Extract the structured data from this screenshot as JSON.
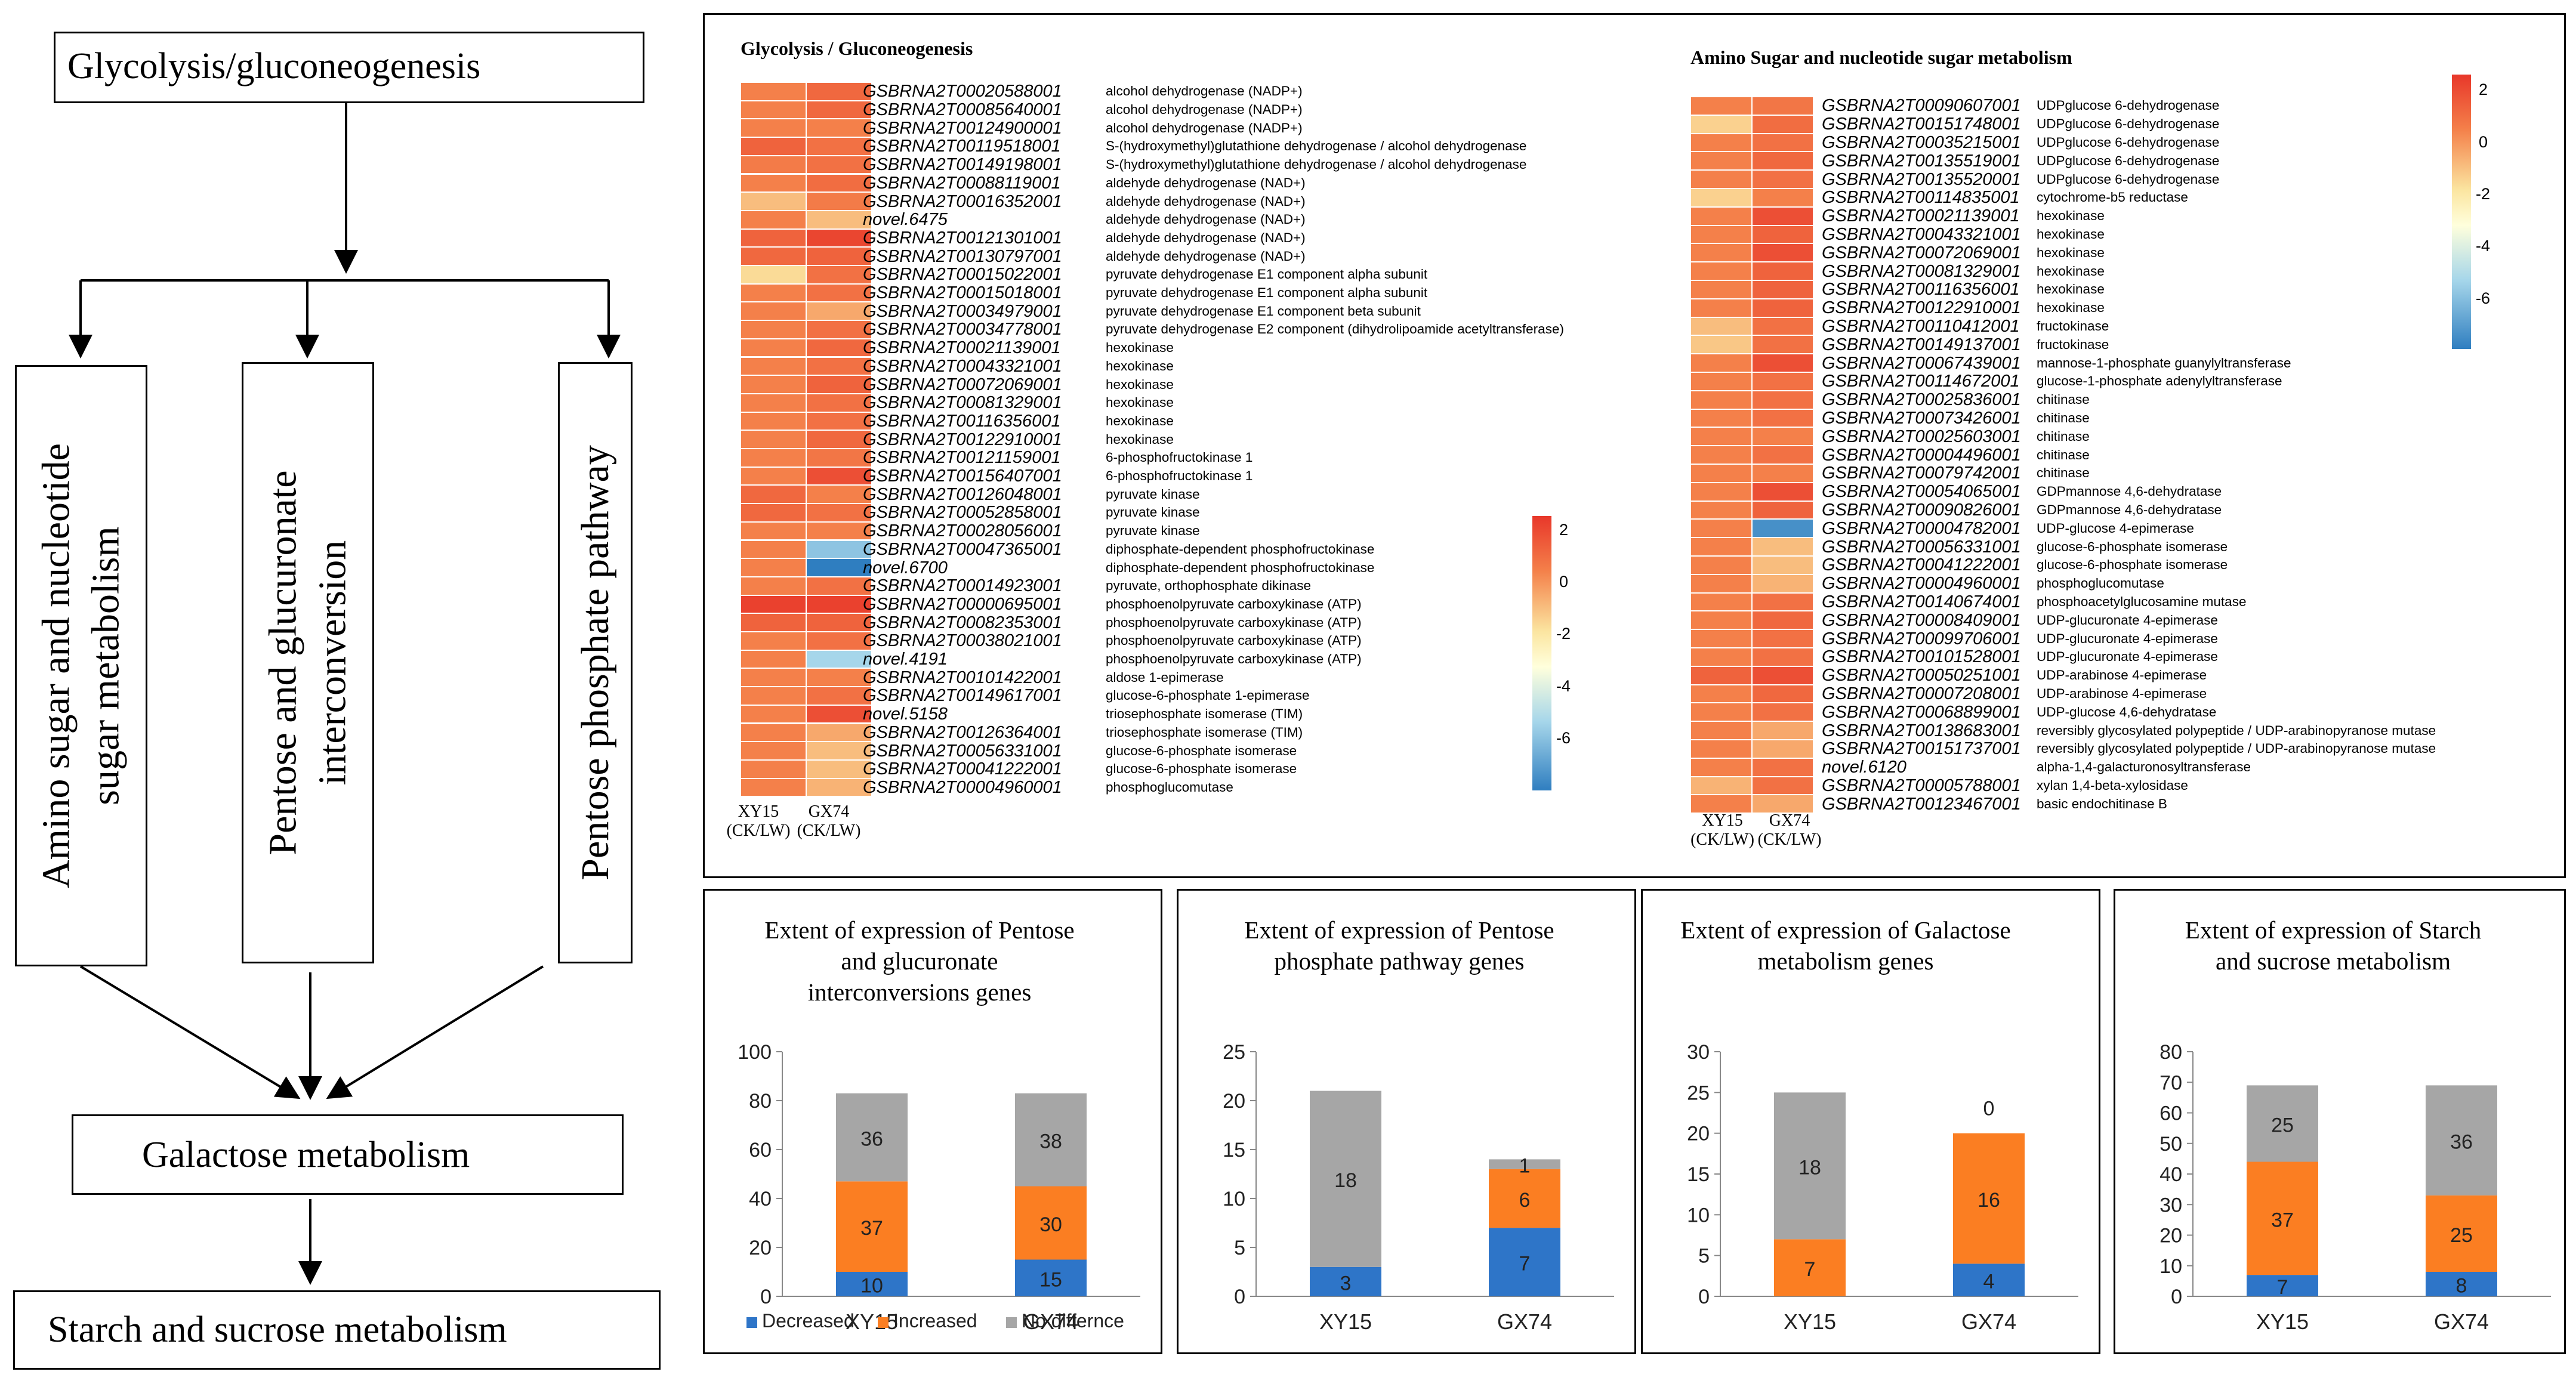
{
  "flow": {
    "glycolysis": "Glycolysis/gluconeogenesis",
    "amino": "Amino sugar and nucleotide sugar metabolism",
    "pentose_glucuronate": "Pentose and glucuronate interconversion",
    "pentose_phosphate": "Pentose phosphate pathway",
    "galactose": "Galactose metabolism",
    "starch": "Starch and sucrose metabolism"
  },
  "heatmap_glycolysis": {
    "title": "Glycolysis / Gluconeogenesis",
    "col1": "XY15 (CK/LW)",
    "col2": "GX74 (CK/LW)",
    "scale_ticks": [
      "2",
      "0",
      "-2",
      "-4",
      "-6"
    ],
    "rows": [
      {
        "id": "GSBRNA2T00020588001",
        "name": "alcohol dehydrogenase (NADP+)",
        "v": [
          1.0,
          1.5
        ]
      },
      {
        "id": "GSBRNA2T00085640001",
        "name": "alcohol dehydrogenase (NADP+)",
        "v": [
          1.0,
          1.5
        ]
      },
      {
        "id": "GSBRNA2T00124900001",
        "name": "alcohol dehydrogenase (NADP+)",
        "v": [
          1.0,
          1.0
        ]
      },
      {
        "id": "GSBRNA2T00119518001",
        "name": "S-(hydroxymethyl)glutathione dehydrogenase / alcohol dehydrogenase",
        "v": [
          1.6,
          1.3
        ]
      },
      {
        "id": "GSBRNA2T00149198001",
        "name": "S-(hydroxymethyl)glutathione dehydrogenase / alcohol dehydrogenase",
        "v": [
          1.1,
          1.3
        ]
      },
      {
        "id": "GSBRNA2T00088119001",
        "name": "aldehyde dehydrogenase (NAD+)",
        "v": [
          1.0,
          1.4
        ]
      },
      {
        "id": "GSBRNA2T00016352001",
        "name": "aldehyde dehydrogenase (NAD+)",
        "v": [
          0.4,
          1.1
        ]
      },
      {
        "id": "novel.6475",
        "name": "aldehyde dehydrogenase (NAD+)",
        "v": [
          1.0,
          0.4
        ]
      },
      {
        "id": "GSBRNA2T00121301001",
        "name": "aldehyde dehydrogenase (NAD+)",
        "v": [
          1.6,
          2.2
        ]
      },
      {
        "id": "GSBRNA2T00130797001",
        "name": "aldehyde dehydrogenase (NAD+)",
        "v": [
          1.5,
          1.6
        ]
      },
      {
        "id": "GSBRNA2T00015022001",
        "name": "pyruvate dehydrogenase E1 component alpha subunit",
        "v": [
          0.1,
          1.3
        ]
      },
      {
        "id": "GSBRNA2T00015018001",
        "name": "pyruvate dehydrogenase E1 component alpha subunit",
        "v": [
          1.0,
          1.3
        ]
      },
      {
        "id": "GSBRNA2T00034979001",
        "name": "pyruvate dehydrogenase E1 component beta subunit",
        "v": [
          1.0,
          0.6
        ]
      },
      {
        "id": "GSBRNA2T00034778001",
        "name": "pyruvate dehydrogenase E2 component (dihydrolipoamide acetyltransferase)",
        "v": [
          1.0,
          1.3
        ]
      },
      {
        "id": "GSBRNA2T00021139001",
        "name": "hexokinase",
        "v": [
          1.0,
          1.5
        ]
      },
      {
        "id": "GSBRNA2T00043321001",
        "name": "hexokinase",
        "v": [
          1.0,
          1.3
        ]
      },
      {
        "id": "GSBRNA2T00072069001",
        "name": "hexokinase",
        "v": [
          1.0,
          1.6
        ]
      },
      {
        "id": "GSBRNA2T00081329001",
        "name": "hexokinase",
        "v": [
          1.0,
          1.3
        ]
      },
      {
        "id": "GSBRNA2T00116356001",
        "name": "hexokinase",
        "v": [
          1.0,
          1.3
        ]
      },
      {
        "id": "GSBRNA2T00122910001",
        "name": "hexokinase",
        "v": [
          1.0,
          1.5
        ]
      },
      {
        "id": "GSBRNA2T00121159001",
        "name": "6-phosphofructokinase 1",
        "v": [
          1.0,
          1.2
        ]
      },
      {
        "id": "GSBRNA2T00156407001",
        "name": "6-phosphofructokinase 1",
        "v": [
          1.0,
          2.0
        ]
      },
      {
        "id": "GSBRNA2T00126048001",
        "name": "pyruvate kinase",
        "v": [
          1.5,
          1.0
        ]
      },
      {
        "id": "GSBRNA2T00052858001",
        "name": "pyruvate kinase",
        "v": [
          1.5,
          1.3
        ]
      },
      {
        "id": "GSBRNA2T00028056001",
        "name": "pyruvate kinase",
        "v": [
          1.0,
          1.0
        ]
      },
      {
        "id": "GSBRNA2T00047365001",
        "name": "diphosphate-dependent phosphofructokinase",
        "v": [
          1.0,
          -5.0
        ]
      },
      {
        "id": "novel.6700",
        "name": "diphosphate-dependent phosphofructokinase",
        "v": [
          1.0,
          -7.0
        ]
      },
      {
        "id": "GSBRNA2T00014923001",
        "name": "pyruvate, orthophosphate dikinase",
        "v": [
          1.0,
          1.3
        ]
      },
      {
        "id": "GSBRNA2T00000695001",
        "name": "phosphoenolpyruvate carboxykinase (ATP)",
        "v": [
          2.3,
          2.3
        ]
      },
      {
        "id": "GSBRNA2T00082353001",
        "name": "phosphoenolpyruvate carboxykinase (ATP)",
        "v": [
          1.6,
          1.6
        ]
      },
      {
        "id": "GSBRNA2T00038021001",
        "name": "phosphoenolpyruvate carboxykinase (ATP)",
        "v": [
          1.0,
          1.3
        ]
      },
      {
        "id": "novel.4191",
        "name": "phosphoenolpyruvate carboxykinase (ATP)",
        "v": [
          1.0,
          -4.5
        ]
      },
      {
        "id": "GSBRNA2T00101422001",
        "name": "aldose 1-epimerase",
        "v": [
          1.0,
          1.0
        ]
      },
      {
        "id": "GSBRNA2T00149617001",
        "name": "glucose-6-phosphate 1-epimerase",
        "v": [
          1.0,
          1.3
        ]
      },
      {
        "id": "novel.5158",
        "name": "triosephosphate isomerase (TIM)",
        "v": [
          1.0,
          2.0
        ]
      },
      {
        "id": "GSBRNA2T00126364001",
        "name": "triosephosphate isomerase (TIM)",
        "v": [
          1.0,
          0.6
        ]
      },
      {
        "id": "GSBRNA2T00056331001",
        "name": "glucose-6-phosphate isomerase",
        "v": [
          1.0,
          0.4
        ]
      },
      {
        "id": "GSBRNA2T00041222001",
        "name": "glucose-6-phosphate isomerase",
        "v": [
          1.0,
          0.4
        ]
      },
      {
        "id": "GSBRNA2T00004960001",
        "name": "phosphoglucomutase",
        "v": [
          1.0,
          0.5
        ]
      }
    ]
  },
  "heatmap_amino": {
    "title": "Amino Sugar and nucleotide sugar metabolism",
    "col1": "XY15 (CK/LW)",
    "col2": "GX74 (CK/LW)",
    "scale_ticks": [
      "2",
      "0",
      "-2",
      "-4",
      "-6"
    ],
    "rows": [
      {
        "id": "GSBRNA2T00090607001",
        "name": "UDPglucose 6-dehydrogenase",
        "v": [
          1.0,
          1.2
        ]
      },
      {
        "id": "GSBRNA2T00151748001",
        "name": "UDPglucose 6-dehydrogenase",
        "v": [
          0.2,
          1.4
        ]
      },
      {
        "id": "GSBRNA2T00035215001",
        "name": "UDPglucose 6-dehydrogenase",
        "v": [
          1.0,
          1.3
        ]
      },
      {
        "id": "GSBRNA2T00135519001",
        "name": "UDPglucose 6-dehydrogenase",
        "v": [
          1.0,
          1.5
        ]
      },
      {
        "id": "GSBRNA2T00135520001",
        "name": "UDPglucose 6-dehydrogenase",
        "v": [
          1.0,
          1.3
        ]
      },
      {
        "id": "GSBRNA2T00114835001",
        "name": "cytochrome-b5 reductase",
        "v": [
          0.2,
          1.0
        ]
      },
      {
        "id": "GSBRNA2T00021139001",
        "name": "hexokinase",
        "v": [
          1.0,
          2.0
        ]
      },
      {
        "id": "GSBRNA2T00043321001",
        "name": "hexokinase",
        "v": [
          1.0,
          1.6
        ]
      },
      {
        "id": "GSBRNA2T00072069001",
        "name": "hexokinase",
        "v": [
          1.0,
          2.0
        ]
      },
      {
        "id": "GSBRNA2T00081329001",
        "name": "hexokinase",
        "v": [
          1.0,
          1.6
        ]
      },
      {
        "id": "GSBRNA2T00116356001",
        "name": "hexokinase",
        "v": [
          1.0,
          1.6
        ]
      },
      {
        "id": "GSBRNA2T00122910001",
        "name": "hexokinase",
        "v": [
          1.0,
          1.6
        ]
      },
      {
        "id": "GSBRNA2T00110412001",
        "name": "fructokinase",
        "v": [
          0.4,
          1.3
        ]
      },
      {
        "id": "GSBRNA2T00149137001",
        "name": "fructokinase",
        "v": [
          0.3,
          1.3
        ]
      },
      {
        "id": "GSBRNA2T00067439001",
        "name": "mannose-1-phosphate guanylyltransferase",
        "v": [
          1.0,
          2.0
        ]
      },
      {
        "id": "GSBRNA2T00114672001",
        "name": "glucose-1-phosphate adenylyltransferase",
        "v": [
          1.0,
          1.3
        ]
      },
      {
        "id": "GSBRNA2T00025836001",
        "name": "chitinase",
        "v": [
          1.0,
          1.3
        ]
      },
      {
        "id": "GSBRNA2T00073426001",
        "name": "chitinase",
        "v": [
          1.0,
          1.3
        ]
      },
      {
        "id": "GSBRNA2T00025603001",
        "name": "chitinase",
        "v": [
          1.0,
          1.0
        ]
      },
      {
        "id": "GSBRNA2T00004496001",
        "name": "chitinase",
        "v": [
          1.0,
          1.3
        ]
      },
      {
        "id": "GSBRNA2T00079742001",
        "name": "chitinase",
        "v": [
          1.0,
          1.0
        ]
      },
      {
        "id": "GSBRNA2T00054065001",
        "name": "GDPmannose 4,6-dehydratase",
        "v": [
          1.0,
          2.0
        ]
      },
      {
        "id": "GSBRNA2T00090826001",
        "name": "GDPmannose 4,6-dehydratase",
        "v": [
          1.0,
          1.6
        ]
      },
      {
        "id": "GSBRNA2T00004782001",
        "name": "UDP-glucose 4-epimerase",
        "v": [
          1.0,
          -6.5
        ]
      },
      {
        "id": "GSBRNA2T00056331001",
        "name": "glucose-6-phosphate isomerase",
        "v": [
          1.0,
          0.4
        ]
      },
      {
        "id": "GSBRNA2T00041222001",
        "name": "glucose-6-phosphate isomerase",
        "v": [
          1.0,
          0.4
        ]
      },
      {
        "id": "GSBRNA2T00004960001",
        "name": "phosphoglucomutase",
        "v": [
          1.0,
          0.5
        ]
      },
      {
        "id": "GSBRNA2T00140674001",
        "name": "phosphoacetylglucosamine mutase",
        "v": [
          1.0,
          1.3
        ]
      },
      {
        "id": "GSBRNA2T00008409001",
        "name": "UDP-glucuronate 4-epimerase",
        "v": [
          1.0,
          1.5
        ]
      },
      {
        "id": "GSBRNA2T00099706001",
        "name": "UDP-glucuronate 4-epimerase",
        "v": [
          1.0,
          1.3
        ]
      },
      {
        "id": "GSBRNA2T00101528001",
        "name": "UDP-glucuronate 4-epimerase",
        "v": [
          1.0,
          1.3
        ]
      },
      {
        "id": "GSBRNA2T00050251001",
        "name": "UDP-arabinose 4-epimerase",
        "v": [
          1.6,
          2.0
        ]
      },
      {
        "id": "GSBRNA2T00007208001",
        "name": "UDP-arabinose 4-epimerase",
        "v": [
          1.0,
          1.5
        ]
      },
      {
        "id": "GSBRNA2T00068899001",
        "name": "UDP-glucose 4,6-dehydratase",
        "v": [
          1.0,
          1.3
        ]
      },
      {
        "id": "GSBRNA2T00138683001",
        "name": "reversibly glycosylated polypeptide / UDP-arabinopyranose mutase",
        "v": [
          1.0,
          0.6
        ]
      },
      {
        "id": "GSBRNA2T00151737001",
        "name": "reversibly glycosylated polypeptide / UDP-arabinopyranose mutase",
        "v": [
          1.0,
          0.6
        ]
      },
      {
        "id": "novel.6120",
        "name": "alpha-1,4-galacturonosyltransferase",
        "v": [
          1.0,
          1.3
        ]
      },
      {
        "id": "GSBRNA2T00005788001",
        "name": "xylan 1,4-beta-xylosidase",
        "v": [
          0.5,
          1.3
        ]
      },
      {
        "id": "GSBRNA2T00123467001",
        "name": "basic endochitinase B",
        "v": [
          1.0,
          0.6
        ]
      }
    ]
  },
  "legend": {
    "decreased": "Decreased",
    "increased": "Increased",
    "nodiff": "No differnce"
  },
  "colors": {
    "decreased": "#2e75c8",
    "increased": "#fb7e22",
    "nodiff": "#a6a6a6"
  },
  "chart_data": [
    {
      "type": "bar",
      "stacked": true,
      "title": "Extent of expression of Pentose and glucuronate interconversions genes",
      "categories": [
        "XY15",
        "GX74"
      ],
      "ylim": [
        0,
        100
      ],
      "yticks": [
        0,
        20,
        40,
        60,
        80,
        100
      ],
      "series": [
        {
          "name": "Decreased",
          "values": [
            10,
            15
          ]
        },
        {
          "name": "Increased",
          "values": [
            37,
            30
          ]
        },
        {
          "name": "No differnce",
          "values": [
            36,
            38
          ]
        }
      ]
    },
    {
      "type": "bar",
      "stacked": true,
      "title": "Extent of expression of Pentose phosphate pathway genes",
      "categories": [
        "XY15",
        "GX74"
      ],
      "ylim": [
        0,
        25
      ],
      "yticks": [
        0,
        5,
        10,
        15,
        20,
        25
      ],
      "series": [
        {
          "name": "Decreased",
          "values": [
            3,
            7
          ]
        },
        {
          "name": "Increased",
          "values": [
            0,
            6
          ]
        },
        {
          "name": "No differnce",
          "values": [
            18,
            1
          ]
        }
      ]
    },
    {
      "type": "bar",
      "stacked": true,
      "title": "Extent of expression of Galactose metabolism genes",
      "categories": [
        "XY15",
        "GX74"
      ],
      "ylim": [
        0,
        30
      ],
      "yticks": [
        0,
        5,
        10,
        15,
        20,
        25,
        30
      ],
      "series": [
        {
          "name": "Decreased",
          "values": [
            0,
            4
          ]
        },
        {
          "name": "Increased",
          "values": [
            7,
            16
          ]
        },
        {
          "name": "No differnce",
          "values": [
            18,
            0
          ]
        }
      ]
    },
    {
      "type": "bar",
      "stacked": true,
      "title": "Extent of expression of Starch and sucrose metabolism",
      "categories": [
        "XY15",
        "GX74"
      ],
      "ylim": [
        0,
        80
      ],
      "yticks": [
        0,
        10,
        20,
        30,
        40,
        50,
        60,
        70,
        80
      ],
      "series": [
        {
          "name": "Decreased",
          "values": [
            7,
            8
          ]
        },
        {
          "name": "Increased",
          "values": [
            37,
            25
          ]
        },
        {
          "name": "No differnce",
          "values": [
            25,
            36
          ]
        }
      ]
    }
  ]
}
